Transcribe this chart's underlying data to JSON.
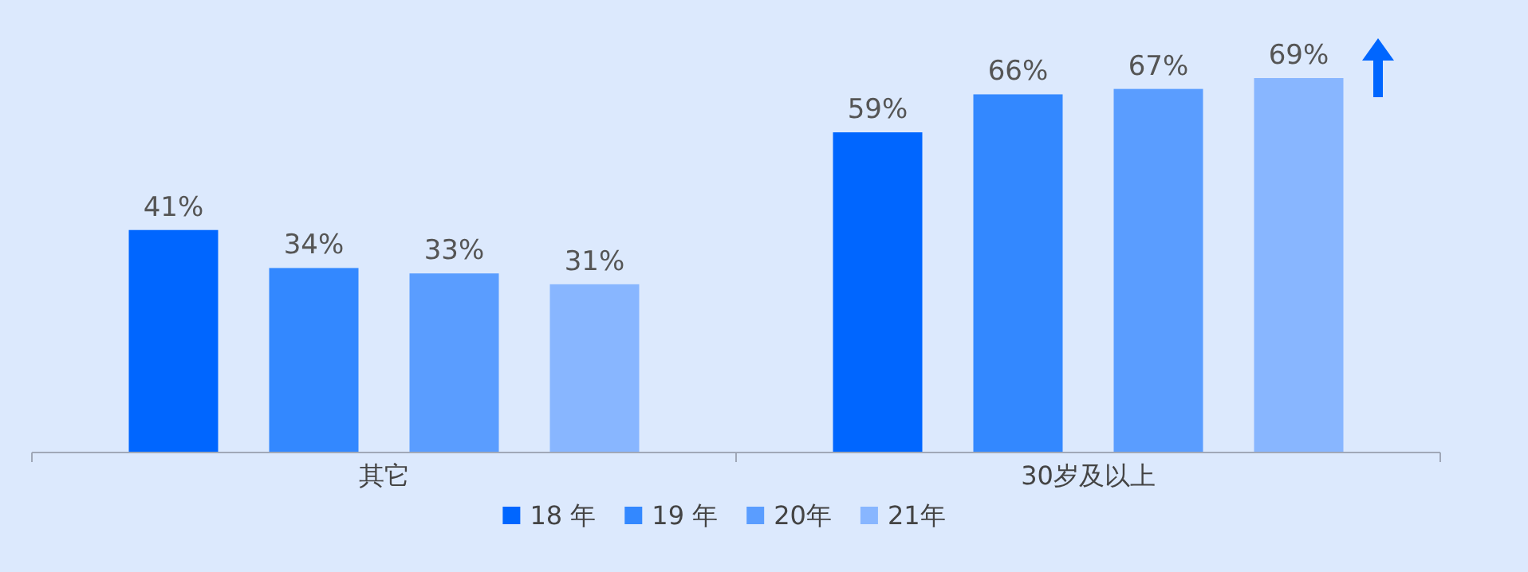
{
  "chart_data": {
    "type": "bar",
    "categories": [
      "其它",
      "30岁及以上"
    ],
    "series": [
      {
        "name": "18 年",
        "color": "#0066ff",
        "values": [
          41,
          59
        ],
        "value_labels": [
          "41%",
          "59%"
        ]
      },
      {
        "name": "19 年",
        "color": "#3388ff",
        "values": [
          34,
          66
        ],
        "value_labels": [
          "34%",
          "66%"
        ]
      },
      {
        "name": "20年",
        "color": "#5a9dff",
        "values": [
          33,
          67
        ],
        "value_labels": [
          "33%",
          "67%"
        ]
      },
      {
        "name": "21年",
        "color": "#88b6ff",
        "values": [
          31,
          69
        ],
        "value_labels": [
          "31%",
          "69%"
        ]
      }
    ],
    "legend": "bottom"
  }
}
